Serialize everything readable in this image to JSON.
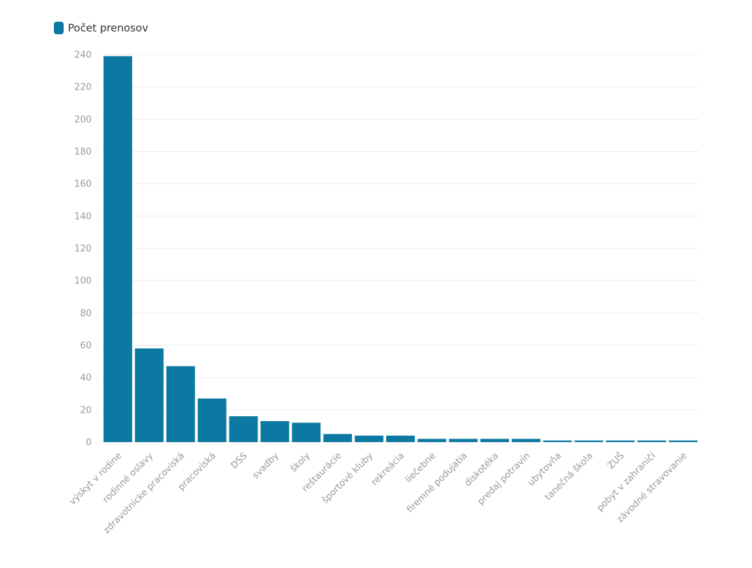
{
  "chart_data": {
    "type": "bar",
    "legend": {
      "label": "Počet prenosov",
      "placement": "top-left"
    },
    "color": "#0b79a1",
    "categories": [
      "výskyt v rodine",
      "rodinné oslavy",
      "zdravotnícke pracoviská",
      "pracoviská",
      "DSS",
      "svadby",
      "školy",
      "reštaurácie",
      "športové kluby",
      "rekreácia",
      "liečebne",
      "firemné podujatia",
      "diskotéka",
      "predaj potravín",
      "ubytovňa",
      "tanečná škola",
      "ZUŠ",
      "pobyt v zahraničí",
      "závodné stravovanie"
    ],
    "series": [
      {
        "name": "Počet prenosov",
        "values": [
          239,
          58,
          47,
          27,
          16,
          13,
          12,
          5,
          4,
          4,
          2,
          2,
          2,
          2,
          1,
          1,
          1,
          1,
          1
        ]
      }
    ],
    "ylim": [
      0,
      240
    ],
    "yticks": [
      0,
      20,
      40,
      60,
      80,
      100,
      120,
      140,
      160,
      180,
      200,
      220,
      240
    ],
    "grid": true
  }
}
